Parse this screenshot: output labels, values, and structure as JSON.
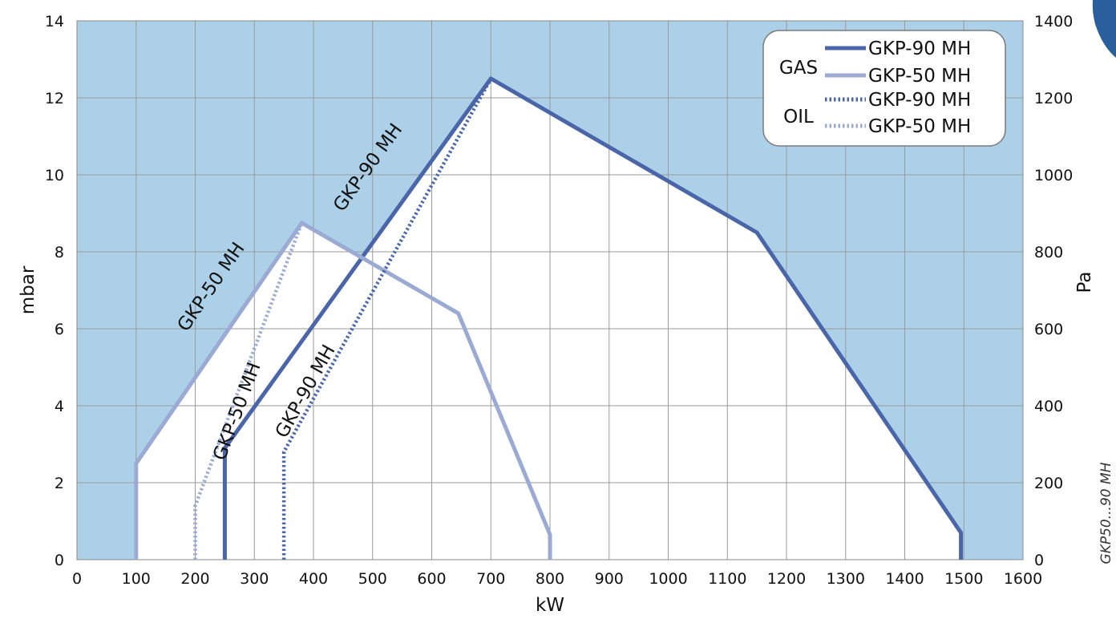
{
  "chart_data": {
    "type": "line",
    "xlabel": "kW",
    "ylabel_left": "mbar",
    "ylabel_right": "Pa",
    "xlim": [
      0,
      1600
    ],
    "ylim_left": [
      0,
      14
    ],
    "ylim_right": [
      0,
      1400
    ],
    "x_ticks": [
      0,
      100,
      200,
      300,
      400,
      500,
      600,
      700,
      800,
      900,
      1000,
      1100,
      1200,
      1300,
      1400,
      1500,
      1600
    ],
    "y_ticks_left": [
      0,
      2,
      4,
      6,
      8,
      10,
      12,
      14
    ],
    "y_ticks_right": [
      0,
      200,
      400,
      600,
      800,
      1000,
      1200,
      1400
    ],
    "grid": true,
    "legend_position": "top-right",
    "legend_groups": [
      {
        "label": "GAS",
        "entries": [
          "GKP-90 MH",
          "GKP-50 MH"
        ]
      },
      {
        "label": "OIL",
        "entries": [
          "GKP-90 MH",
          "GKP-50 MH"
        ]
      }
    ],
    "series": [
      {
        "name": "GKP-90 MH",
        "group": "GAS",
        "style": "solid",
        "color": "#4a66a8",
        "points": [
          [
            250,
            0
          ],
          [
            250,
            2.9
          ],
          [
            700,
            12.5
          ],
          [
            1150,
            8.5
          ],
          [
            1495,
            0.7
          ],
          [
            1495,
            0
          ]
        ]
      },
      {
        "name": "GKP-50 MH",
        "group": "GAS",
        "style": "solid",
        "color": "#9aaad2",
        "points": [
          [
            100,
            0
          ],
          [
            100,
            2.5
          ],
          [
            380,
            8.75
          ],
          [
            645,
            6.4
          ],
          [
            800,
            0.65
          ],
          [
            800,
            0
          ]
        ]
      },
      {
        "name": "GKP-90 MH",
        "group": "OIL",
        "style": "dotted",
        "color": "#4a66a8",
        "points": [
          [
            350,
            0
          ],
          [
            350,
            2.8
          ],
          [
            700,
            12.5
          ]
        ]
      },
      {
        "name": "GKP-50 MH",
        "group": "OIL",
        "style": "dotted",
        "color": "#9aaad2",
        "points": [
          [
            200,
            0
          ],
          [
            200,
            1.4
          ],
          [
            380,
            8.75
          ]
        ]
      }
    ],
    "annotations": [
      {
        "text": "GKP-50 MH",
        "x": 235,
        "y": 7.0
      },
      {
        "text": "GKP-90 MH",
        "x": 500,
        "y": 10.1
      },
      {
        "text": "GKP-50 MH",
        "x": 280,
        "y": 3.8
      },
      {
        "text": "GKP-90 MH",
        "x": 395,
        "y": 4.3
      }
    ],
    "side_note": "GKP50...90 MH",
    "colors": {
      "background": "#abd0e8",
      "envelope_fill": "#ffffff",
      "grid": "#9a9a9a"
    }
  }
}
